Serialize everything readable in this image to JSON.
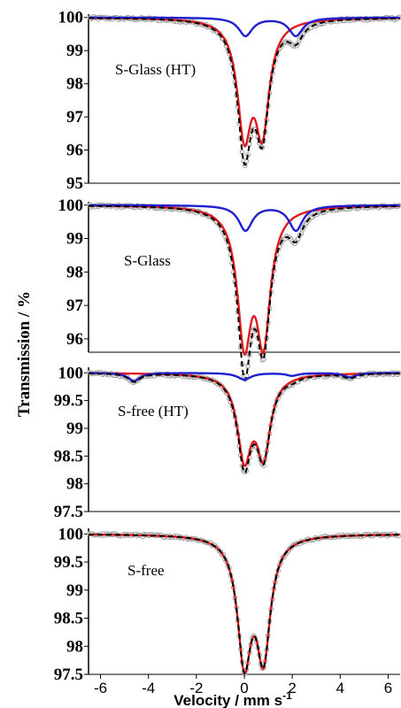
{
  "chart_data": {
    "type": "scatter",
    "ylabel": "Transmission / %",
    "xlabel": "Velocity / mm s",
    "xlabel_sup": "-1",
    "xlim": [
      -6.5,
      6.5
    ],
    "xticks": [
      -6,
      -4,
      -2,
      0,
      2,
      4,
      6
    ],
    "xtick_labels": [
      "-6",
      "-4",
      "-2",
      "0",
      "2",
      "4",
      "6"
    ],
    "colors": {
      "data_points": "#9a9a9a",
      "total_fit": "#000000",
      "doublet_main": "#e31a1c",
      "doublet_minor": "#1f1fd0"
    },
    "panels": [
      {
        "label": "S-Glass (HT)",
        "ylim": [
          95,
          100.1
        ],
        "yticks": [
          100,
          99,
          98,
          97,
          96,
          95
        ],
        "ytick_labels": [
          "100",
          "99",
          "98",
          "97",
          "96",
          "95"
        ],
        "components": [
          {
            "color": "doublet_main",
            "lines": [
              {
                "center": 0.0,
                "depth": 3.3,
                "width": 0.35
              },
              {
                "center": 0.75,
                "depth": 3.2,
                "width": 0.35
              }
            ]
          },
          {
            "color": "doublet_minor",
            "lines": [
              {
                "center": 0.05,
                "depth": 0.55,
                "width": 0.35
              },
              {
                "center": 2.15,
                "depth": 0.55,
                "width": 0.35
              }
            ]
          }
        ]
      },
      {
        "label": "S-Glass",
        "ylim": [
          95.6,
          100.1
        ],
        "yticks": [
          100,
          99,
          98,
          97,
          96
        ],
        "ytick_labels": [
          "100",
          "99",
          "98",
          "97",
          "96"
        ],
        "components": [
          {
            "color": "doublet_main",
            "lines": [
              {
                "center": 0.0,
                "depth": 3.85,
                "width": 0.35
              },
              {
                "center": 0.8,
                "depth": 3.8,
                "width": 0.35
              }
            ]
          },
          {
            "color": "doublet_minor",
            "lines": [
              {
                "center": 0.05,
                "depth": 0.75,
                "width": 0.35
              },
              {
                "center": 2.15,
                "depth": 0.75,
                "width": 0.35
              }
            ]
          }
        ]
      },
      {
        "label": "S-free (HT)",
        "ylim": [
          97.5,
          100.1
        ],
        "yticks": [
          100,
          99.5,
          99,
          98.5,
          98,
          97.5
        ],
        "ytick_labels": [
          "100",
          "99.5",
          "99",
          "98.5",
          "98",
          "97.5"
        ],
        "components": [
          {
            "color": "doublet_main",
            "lines": [
              {
                "center": 0.0,
                "depth": 1.45,
                "width": 0.35
              },
              {
                "center": 0.8,
                "depth": 1.4,
                "width": 0.35
              }
            ]
          },
          {
            "color": "doublet_minor",
            "lines": [
              {
                "center": -4.6,
                "depth": 0.15,
                "width": 0.3
              },
              {
                "center": 0.0,
                "depth": 0.12,
                "width": 0.35
              },
              {
                "center": 2.0,
                "depth": 0.05,
                "width": 0.3
              },
              {
                "center": 4.4,
                "depth": 0.08,
                "width": 0.3
              }
            ]
          }
        ]
      },
      {
        "label": "S-free",
        "ylim": [
          97.5,
          100.1
        ],
        "yticks": [
          100,
          99.5,
          99,
          98.5,
          98,
          97.5
        ],
        "ytick_labels": [
          "100",
          "99.5",
          "99",
          "98.5",
          "98",
          "97.5"
        ],
        "components": [
          {
            "color": "doublet_main",
            "lines": [
              {
                "center": 0.0,
                "depth": 2.15,
                "width": 0.35
              },
              {
                "center": 0.8,
                "depth": 2.05,
                "width": 0.35
              }
            ]
          }
        ]
      }
    ]
  }
}
